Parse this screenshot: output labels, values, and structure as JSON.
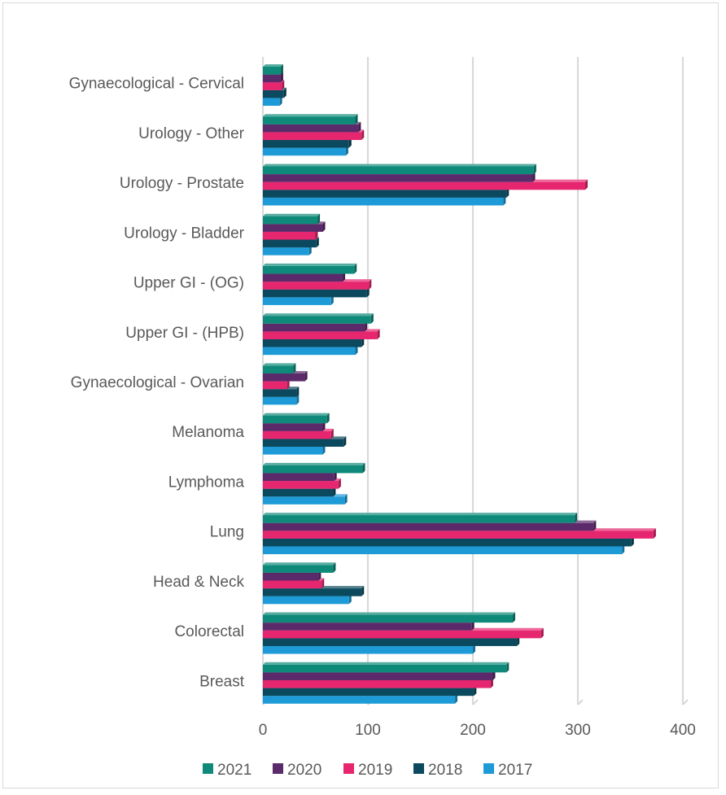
{
  "chart_data": {
    "type": "bar",
    "orientation": "horizontal",
    "style": "3d-clustered-bar",
    "categories": [
      "Gynaecological - Cervical",
      "Urology - Other",
      "Urology - Prostate",
      "Urology - Bladder",
      "Upper GI - (OG)",
      "Upper GI - (HPB)",
      "Gynaecological - Ovarian",
      "Melanoma",
      "Lymphoma",
      "Lung",
      "Head & Neck",
      "Colorectal",
      "Breast"
    ],
    "series": [
      {
        "name": "2021",
        "color": "#0f8a7a",
        "values": [
          17,
          88,
          258,
          52,
          87,
          103,
          29,
          61,
          95,
          297,
          67,
          238,
          232
        ]
      },
      {
        "name": "2020",
        "color": "#5b2a6b",
        "values": [
          17,
          91,
          257,
          57,
          76,
          97,
          40,
          57,
          68,
          315,
          53,
          199,
          219
        ]
      },
      {
        "name": "2019",
        "color": "#e6266e",
        "values": [
          18,
          94,
          307,
          50,
          101,
          109,
          23,
          65,
          72,
          372,
          56,
          265,
          217
        ]
      },
      {
        "name": "2018",
        "color": "#0b4a5e",
        "values": [
          20,
          82,
          232,
          51,
          99,
          94,
          32,
          77,
          67,
          351,
          94,
          242,
          201
        ]
      },
      {
        "name": "2017",
        "color": "#1e9bd7",
        "values": [
          16,
          79,
          229,
          44,
          65,
          88,
          32,
          57,
          78,
          342,
          82,
          200,
          183
        ]
      }
    ],
    "xlim": [
      0,
      400
    ],
    "xticks": [
      "0",
      "100",
      "200",
      "300",
      "400"
    ],
    "grid": true,
    "legend_position": "bottom",
    "title": "",
    "xlabel": "",
    "ylabel": ""
  }
}
